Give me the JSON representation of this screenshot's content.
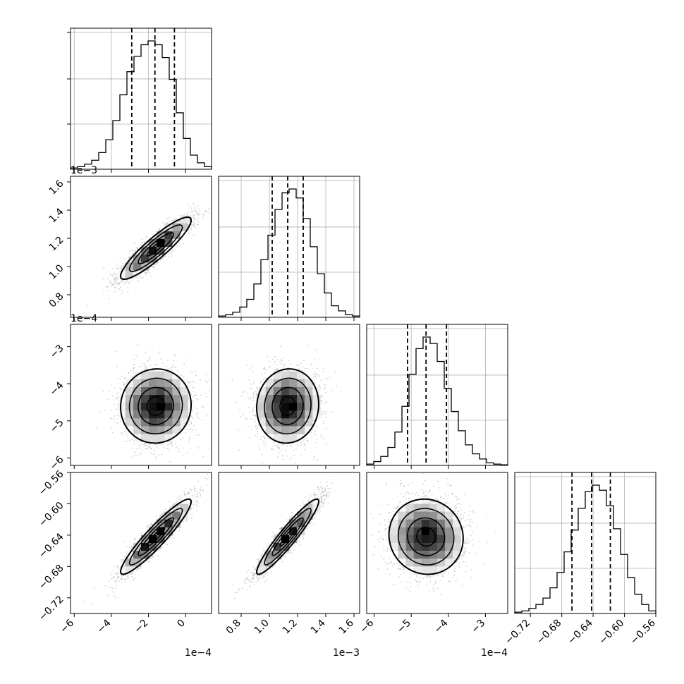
{
  "chart_data": {
    "type": "corner",
    "grid": true,
    "colors": {
      "ink": "#000000",
      "grid": "#b0b0b0",
      "scatter": "#9a9a9a"
    },
    "parameters": [
      {
        "range": [
          -6.2,
          1.4
        ],
        "ticks": [
          -6,
          -4,
          -2,
          0
        ],
        "tick_labels": [
          "−6",
          "−4",
          "−2",
          "0"
        ],
        "offset_label": "1e−4",
        "quantiles": [
          -2.9,
          -1.65,
          -0.6
        ],
        "mean": -1.6,
        "sd": 0.95,
        "hist": [
          0.01,
          0.02,
          0.04,
          0.07,
          0.13,
          0.23,
          0.38,
          0.58,
          0.76,
          0.88,
          0.97,
          1.0,
          0.97,
          0.87,
          0.7,
          0.44,
          0.24,
          0.11,
          0.05,
          0.02
        ]
      },
      {
        "range": [
          0.64,
          1.64
        ],
        "ticks": [
          0.8,
          1.0,
          1.2,
          1.4,
          1.6
        ],
        "tick_labels": [
          "0.8",
          "1.0",
          "1.2",
          "1.4",
          "1.6"
        ],
        "offset_label": "1e−3",
        "quantiles": [
          1.02,
          1.13,
          1.24
        ],
        "mean": 1.13,
        "sd": 0.11,
        "hist": [
          0.01,
          0.02,
          0.04,
          0.08,
          0.14,
          0.26,
          0.45,
          0.64,
          0.84,
          0.97,
          1.0,
          0.93,
          0.77,
          0.55,
          0.34,
          0.19,
          0.09,
          0.05,
          0.02,
          0.01
        ]
      },
      {
        "range": [
          -6.2,
          -2.4
        ],
        "ticks": [
          -6,
          -5,
          -4,
          -3
        ],
        "tick_labels": [
          "−6",
          "−5",
          "−4",
          "−3"
        ],
        "offset_label": "1e−4",
        "quantiles": [
          -5.1,
          -4.6,
          -4.05
        ],
        "mean": -4.6,
        "sd": 0.5,
        "hist": [
          0.01,
          0.03,
          0.07,
          0.14,
          0.26,
          0.46,
          0.71,
          0.91,
          1.0,
          0.95,
          0.81,
          0.6,
          0.42,
          0.27,
          0.16,
          0.09,
          0.05,
          0.02,
          0.01,
          0.005
        ]
      },
      {
        "range": [
          -0.74,
          -0.56
        ],
        "ticks": [
          -0.72,
          -0.68,
          -0.64,
          -0.6,
          -0.56
        ],
        "tick_labels": [
          "−0.72",
          "−0.68",
          "−0.64",
          "−0.60",
          "−0.56"
        ],
        "offset_label": "",
        "quantiles": [
          -0.667,
          -0.642,
          -0.618
        ],
        "mean": -0.642,
        "sd": 0.024,
        "hist": [
          0.01,
          0.02,
          0.04,
          0.07,
          0.12,
          0.2,
          0.32,
          0.48,
          0.65,
          0.82,
          0.95,
          1.0,
          0.96,
          0.84,
          0.66,
          0.46,
          0.28,
          0.15,
          0.07,
          0.02
        ]
      }
    ],
    "correlations": [
      {
        "pair": [
          1,
          0
        ],
        "rho": 0.9
      },
      {
        "pair": [
          2,
          0
        ],
        "rho": 0.03
      },
      {
        "pair": [
          2,
          1
        ],
        "rho": 0.05
      },
      {
        "pair": [
          3,
          0
        ],
        "rho": 0.93
      },
      {
        "pair": [
          3,
          1
        ],
        "rho": 0.94
      },
      {
        "pair": [
          3,
          2
        ],
        "rho": -0.05
      }
    ]
  }
}
